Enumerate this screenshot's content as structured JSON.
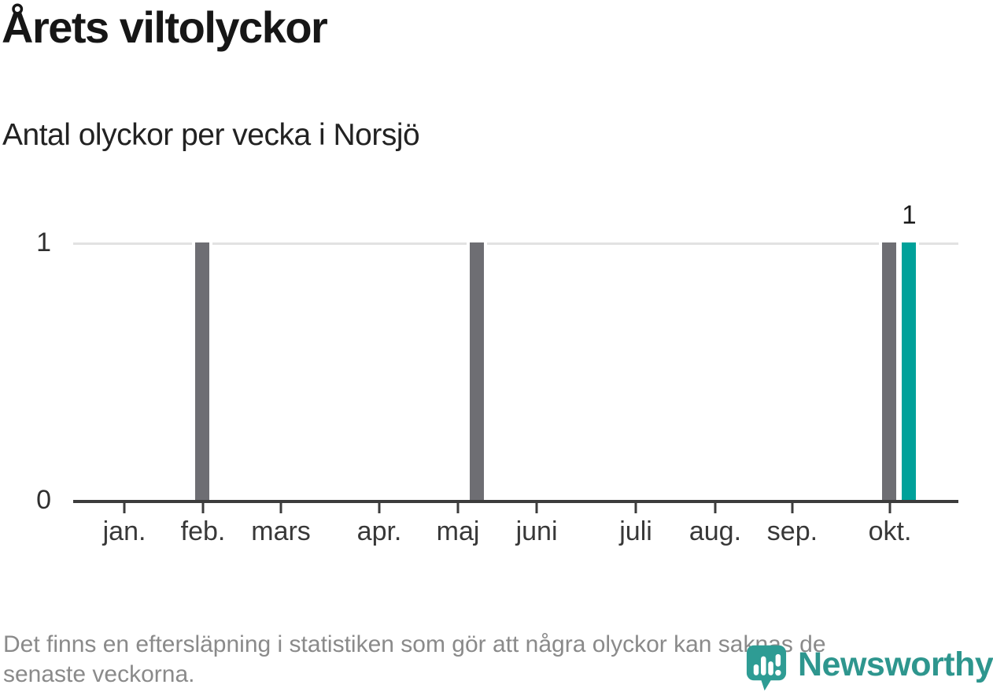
{
  "header": {
    "title": "Årets viltolyckor",
    "subtitle": "Antal olyckor per vecka i Norsjö"
  },
  "footer": {
    "note_line1": "Det finns en eftersläpning i statistiken som gör att några olyckor kan saknas de",
    "note_line2": "senaste veckorna."
  },
  "logo": {
    "name": "Newsworthy",
    "icon": "newsworthy-speech-bubble-bar-chart-icon",
    "text_color": "#2e968e",
    "icon_color": "#2e9c94"
  },
  "colors": {
    "bar_default": "#6e6e73",
    "bar_current": "#00a19a",
    "gridline": "#e2e2e2",
    "axis": "#3c3c3c",
    "text": "#1a1a1a",
    "footer_text": "#8a8a8a"
  },
  "chart_data": {
    "type": "bar",
    "title": "Årets viltolyckor",
    "subtitle": "Antal olyckor per vecka i Norsjö",
    "x_unit": "vecka (week of year)",
    "ylim": [
      0,
      1
    ],
    "grid": "horizontal line at y=1 only",
    "yticks": [
      {
        "label": "1",
        "value": 1
      },
      {
        "label": "0",
        "value": 0
      }
    ],
    "month_ticks": [
      {
        "label": "jan.",
        "x_pct": 5.78
      },
      {
        "label": "feb.",
        "x_pct": 14.67
      },
      {
        "label": "mars",
        "x_pct": 23.47
      },
      {
        "label": "apr.",
        "x_pct": 34.58
      },
      {
        "label": "maj",
        "x_pct": 43.47
      },
      {
        "label": "juni",
        "x_pct": 52.36
      },
      {
        "label": "juli",
        "x_pct": 63.56
      },
      {
        "label": "aug.",
        "x_pct": 72.53
      },
      {
        "label": "sep.",
        "x_pct": 81.24
      },
      {
        "label": "okt.",
        "x_pct": 92.27
      }
    ],
    "bars": [
      {
        "approx_week": 7,
        "value": 1,
        "x_pct": 14.58,
        "color_key": "bar_default",
        "data_label": ""
      },
      {
        "approx_week": 21,
        "value": 1,
        "x_pct": 45.6,
        "color_key": "bar_default",
        "data_label": ""
      },
      {
        "approx_week": 42,
        "value": 1,
        "x_pct": 92.22,
        "color_key": "bar_default",
        "data_label": ""
      },
      {
        "approx_week": 43,
        "value": 1,
        "x_pct": 94.44,
        "color_key": "bar_current",
        "data_label": "1",
        "current": true
      }
    ],
    "all_other_weeks_value": 0
  }
}
